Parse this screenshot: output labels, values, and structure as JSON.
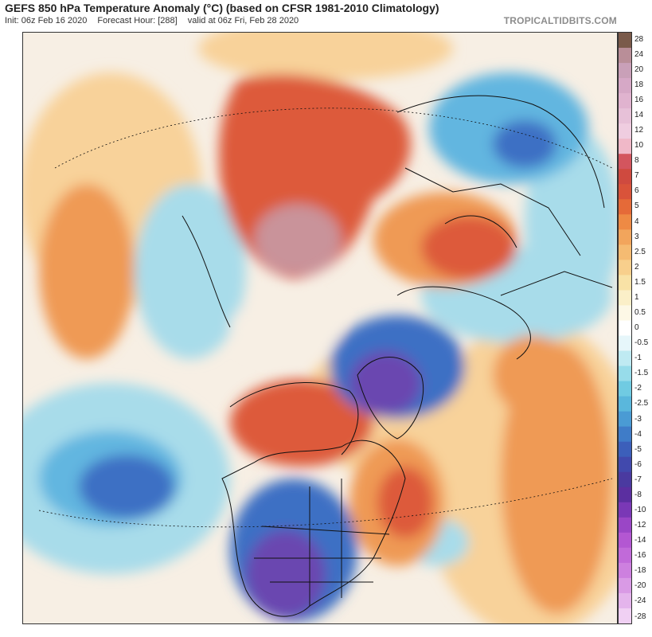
{
  "header": {
    "title": "GEFS 850 hPa Temperature Anomaly (°C) (based on CFSR 1981-2010 Climatology)",
    "init": "Init: 06z Feb 16 2020",
    "forecast_hour": "Forecast Hour: [288]",
    "valid": "valid at 06z Fri, Feb 28 2020",
    "brand": "TROPICALTIDBITS.COM"
  },
  "colorbar": {
    "ticks": [
      "28",
      "24",
      "20",
      "18",
      "16",
      "14",
      "12",
      "10",
      "8",
      "7",
      "6",
      "5",
      "4",
      "3",
      "2.5",
      "2",
      "1.5",
      "1",
      "0.5",
      "0",
      "-0.5",
      "-1",
      "-1.5",
      "-2",
      "-2.5",
      "-3",
      "-4",
      "-5",
      "-6",
      "-7",
      "-8",
      "-10",
      "-12",
      "-14",
      "-16",
      "-18",
      "-20",
      "-24",
      "-28"
    ],
    "colors": [
      "#7a5a4a",
      "#b98e98",
      "#c9a0b8",
      "#d6a8c6",
      "#e0b3cf",
      "#e7c1d8",
      "#efcde0",
      "#f0b8c8",
      "#d3555e",
      "#cf4a3f",
      "#d9533a",
      "#e56a38",
      "#ee8a44",
      "#f2a55c",
      "#f5bb72",
      "#f8cf8c",
      "#f9e2a6",
      "#fbefc8",
      "#fdf8e6",
      "#ffffff",
      "#e6f6fa",
      "#bfeaf2",
      "#97dcea",
      "#70cbe2",
      "#5ab7dc",
      "#4a9bd4",
      "#3f7cc8",
      "#3c5fba",
      "#4149ad",
      "#4a3aa0",
      "#5b2fa0",
      "#7a38b6",
      "#9a46c6",
      "#b357d2",
      "#c16ad9",
      "#cd80df",
      "#d99ae5",
      "#e4b4ec",
      "#f0d0f3"
    ]
  },
  "map_colors": {
    "neutral": "#f7efe4",
    "warm_light": "#f8d29a",
    "warm_mid": "#ef9a55",
    "warm_strong": "#dd5a3a",
    "warm_extreme": "#c9939a",
    "cool_light": "#a8dcea",
    "cool_mid": "#62b6e0",
    "cool_strong": "#3d6fc4",
    "cool_extreme": "#6a46b0",
    "outline": "#111111"
  }
}
